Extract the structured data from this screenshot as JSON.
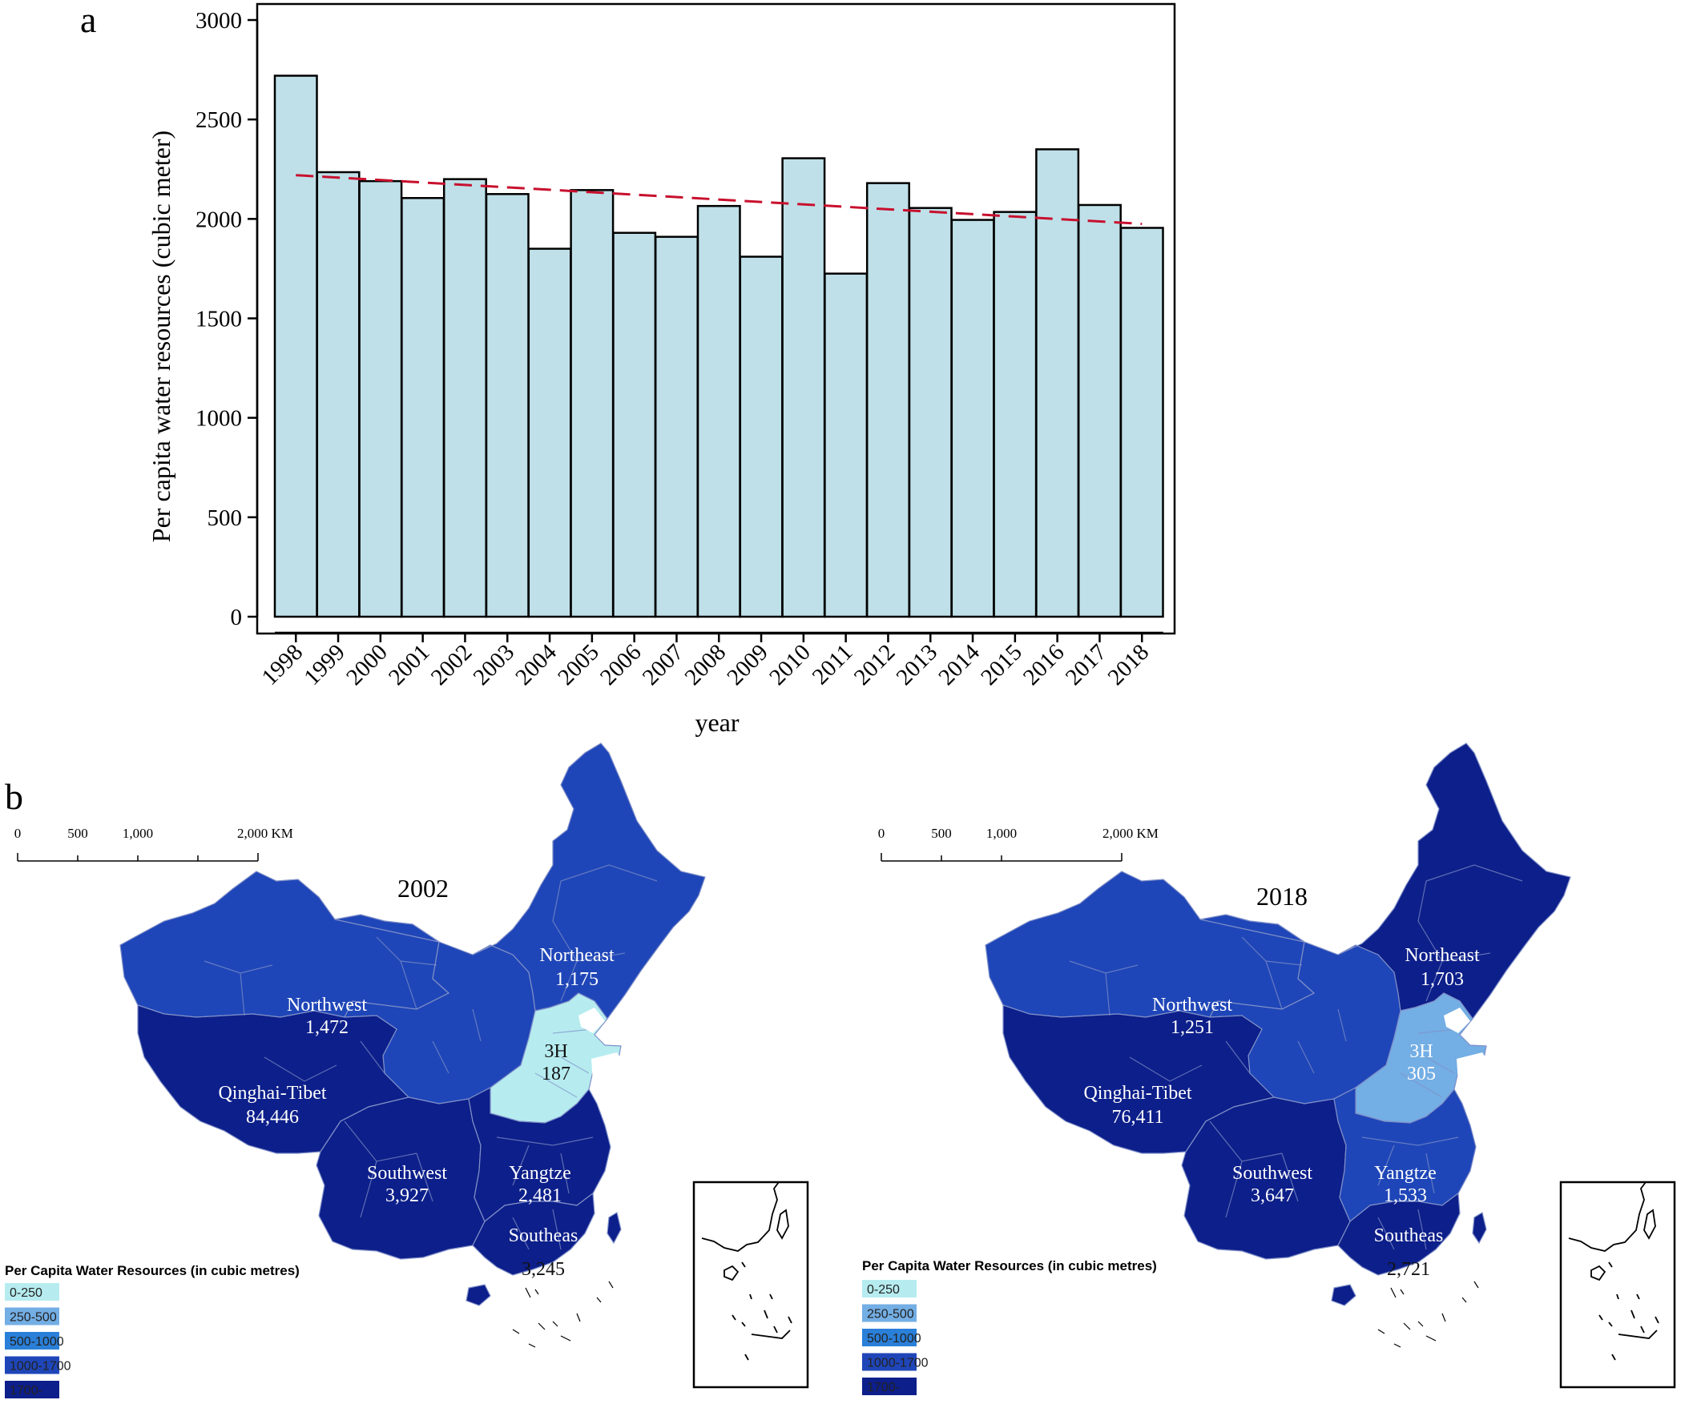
{
  "panel_a": {
    "label": "a",
    "chart_data": {
      "type": "bar",
      "categories": [
        "1998",
        "1999",
        "2000",
        "2001",
        "2002",
        "2003",
        "2004",
        "2005",
        "2006",
        "2007",
        "2008",
        "2009",
        "2010",
        "2011",
        "2012",
        "2013",
        "2014",
        "2015",
        "2016",
        "2017",
        "2018"
      ],
      "values": [
        2720,
        2235,
        2190,
        2105,
        2200,
        2125,
        1850,
        2145,
        1930,
        1910,
        2065,
        1810,
        2305,
        1725,
        2180,
        2055,
        1995,
        2035,
        2350,
        2070,
        1955
      ],
      "trend": {
        "start": 2220,
        "end": 1975,
        "color": "#c8102e",
        "style": "dashed"
      },
      "xlabel": "year",
      "ylabel": "Per capita water resources (cubic meter)",
      "ylim": [
        0,
        3000
      ],
      "yticks": [
        0,
        500,
        1000,
        1500,
        2000,
        2500,
        3000
      ],
      "bar_color": "#bfe0e8",
      "grid": false
    }
  },
  "panel_b": {
    "label": "b",
    "legend_title": "Per Capita Water Resources (in cubic metres)",
    "legend_items": [
      {
        "label": "0-250",
        "color": "#b6ecf0"
      },
      {
        "label": "250-500",
        "color": "#73aee4"
      },
      {
        "label": "500-1000",
        "color": "#2a7fd8"
      },
      {
        "label": "1000-1700",
        "color": "#1f46b8"
      },
      {
        "label": "1700-",
        "color": "#0d1f8a"
      }
    ],
    "scale_labels": [
      "0",
      "500",
      "1,000",
      "2,000 KM"
    ],
    "maps": [
      {
        "year": "2002",
        "regions": [
          {
            "key": "northwest",
            "name": "Northwest",
            "value": "1,472",
            "color": "#1f46b8"
          },
          {
            "key": "northeast",
            "name": "Northeast",
            "value": "1,175",
            "color": "#1f46b8"
          },
          {
            "key": "qinghai",
            "name": "Qinghai-Tibet",
            "value": "84,446",
            "color": "#0d1f8a"
          },
          {
            "key": "h3",
            "name": "3H",
            "value": "187",
            "color": "#b6ecf0"
          },
          {
            "key": "central",
            "name": "",
            "value": "",
            "color": "#1f46b8"
          },
          {
            "key": "southwest",
            "name": "Southwest",
            "value": "3,927",
            "color": "#0d1f8a"
          },
          {
            "key": "yangtze",
            "name": "Yangtze",
            "value": "2,481",
            "color": "#0d1f8a"
          },
          {
            "key": "southeast",
            "name": "Southeas",
            "value": "3,245",
            "color": "#0d1f8a"
          }
        ]
      },
      {
        "year": "2018",
        "regions": [
          {
            "key": "northwest",
            "name": "Northwest",
            "value": "1,251",
            "color": "#1f46b8"
          },
          {
            "key": "northeast",
            "name": "Northeast",
            "value": "1,703",
            "color": "#0d1f8a"
          },
          {
            "key": "qinghai",
            "name": "Qinghai-Tibet",
            "value": "76,411",
            "color": "#0d1f8a"
          },
          {
            "key": "h3",
            "name": "3H",
            "value": "305",
            "color": "#73aee4"
          },
          {
            "key": "central",
            "name": "",
            "value": "",
            "color": "#1f46b8"
          },
          {
            "key": "southwest",
            "name": "Southwest",
            "value": "3,647",
            "color": "#0d1f8a"
          },
          {
            "key": "yangtze",
            "name": "Yangtze",
            "value": "1,533",
            "color": "#1f46b8"
          },
          {
            "key": "southeast",
            "name": "Southeas",
            "value": "2,721",
            "color": "#0d1f8a"
          }
        ]
      }
    ]
  }
}
